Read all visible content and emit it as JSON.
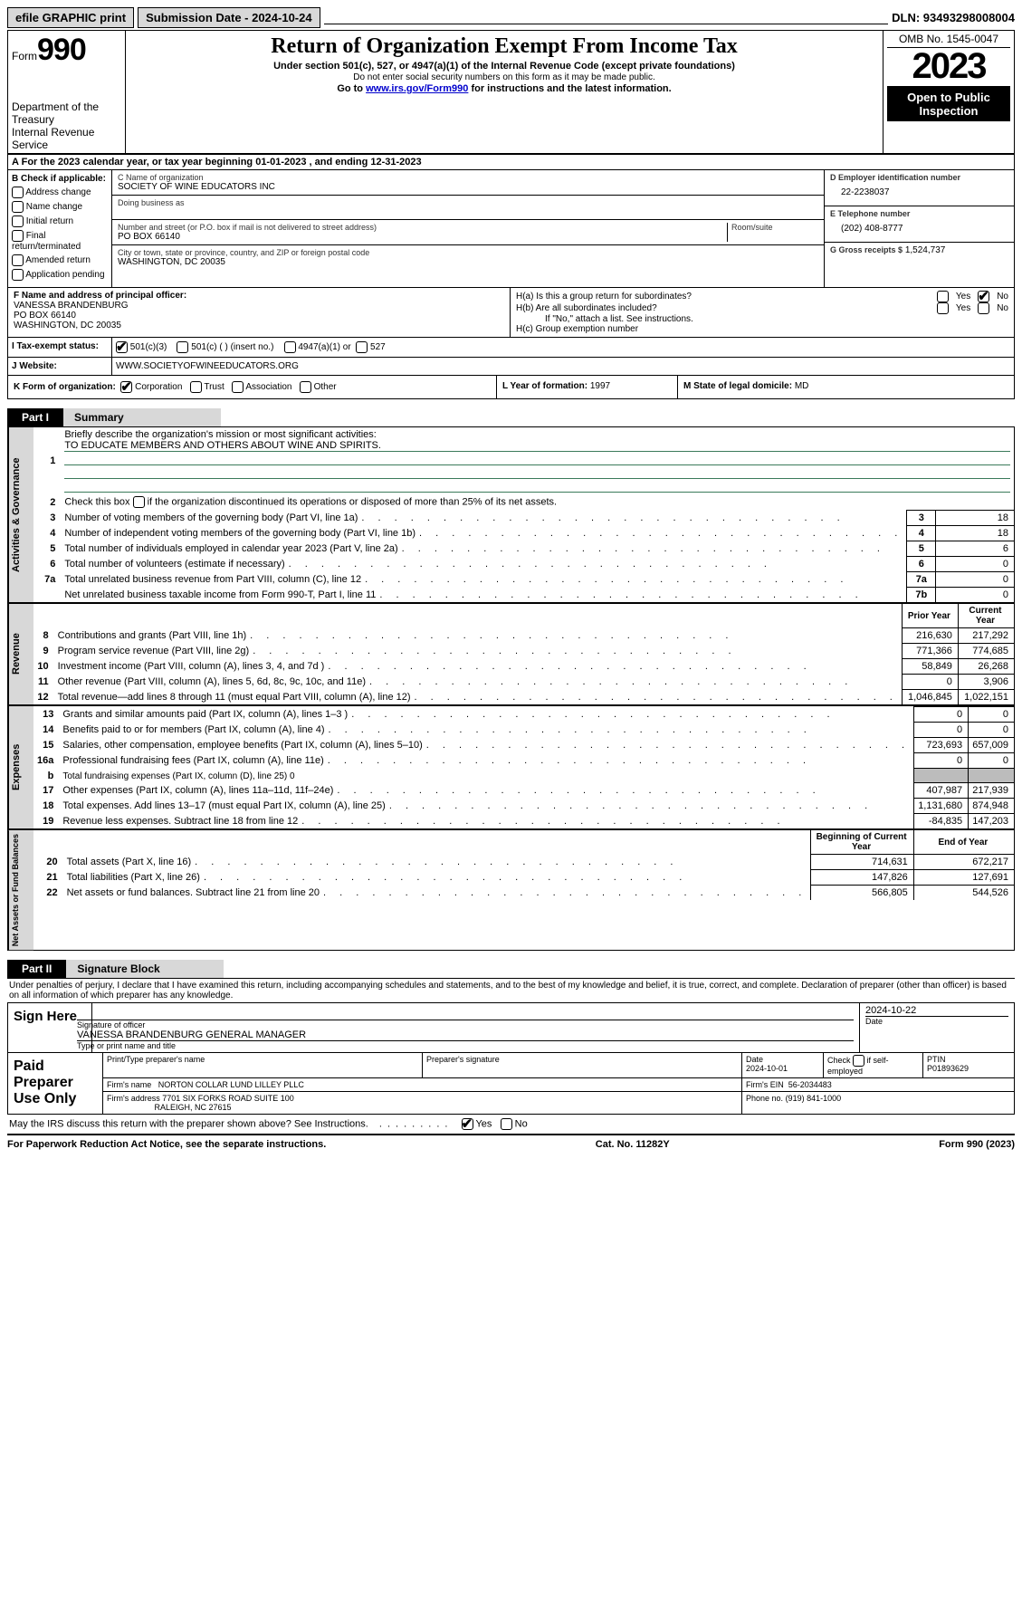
{
  "topbar": {
    "efile_label": "efile GRAPHIC print",
    "submission_label": "Submission Date - 2024-10-24",
    "dln_label": "DLN: 93493298008004"
  },
  "header": {
    "form_prefix": "Form",
    "form_num": "990",
    "dept": "Department of the Treasury",
    "irs": "Internal Revenue Service",
    "title": "Return of Organization Exempt From Income Tax",
    "sub1": "Under section 501(c), 527, or 4947(a)(1) of the Internal Revenue Code (except private foundations)",
    "sub2": "Do not enter social security numbers on this form as it may be made public.",
    "sub3_pre": "Go to ",
    "sub3_link": "www.irs.gov/Form990",
    "sub3_post": " for instructions and the latest information.",
    "omb": "OMB No. 1545-0047",
    "year": "2023",
    "open": "Open to Public Inspection"
  },
  "line_a": "For the 2023 calendar year, or tax year beginning 01-01-2023    , and ending 12-31-2023",
  "box_b": {
    "title": "B Check if applicable:",
    "items": [
      "Address change",
      "Name change",
      "Initial return",
      "Final return/terminated",
      "Amended return",
      "Application pending"
    ]
  },
  "box_c": {
    "name_lbl": "C Name of organization",
    "name": "SOCIETY OF WINE EDUCATORS INC",
    "dba_lbl": "Doing business as",
    "street_lbl": "Number and street (or P.O. box if mail is not delivered to street address)",
    "room_lbl": "Room/suite",
    "street": "PO BOX 66140",
    "city_lbl": "City or town, state or province, country, and ZIP or foreign postal code",
    "city": "WASHINGTON, DC  20035"
  },
  "box_d": {
    "lbl": "D Employer identification number",
    "val": "22-2238037"
  },
  "box_e": {
    "lbl": "E Telephone number",
    "val": "(202) 408-8777"
  },
  "box_g": {
    "lbl": "G Gross receipts $",
    "val": "1,524,737"
  },
  "box_f": {
    "lbl": "F  Name and address of principal officer:",
    "l1": "VANESSA BRANDENBURG",
    "l2": "PO BOX 66140",
    "l3": "WASHINGTON, DC  20035"
  },
  "box_h": {
    "ha": "H(a)  Is this a group return for subordinates?",
    "hb": "H(b)  Are all subordinates included?",
    "hb2": "If \"No,\" attach a list. See instructions.",
    "hc": "H(c)  Group exemption number",
    "yes": "Yes",
    "no": "No"
  },
  "box_i": {
    "lbl": "I    Tax-exempt status:",
    "o1": "501(c)(3)",
    "o2": "501(c) (  ) (insert no.)",
    "o3": "4947(a)(1) or",
    "o4": "527"
  },
  "box_j": {
    "lbl": "J   Website:",
    "val": "WWW.SOCIETYOFWINEEDUCATORS.ORG"
  },
  "box_k": {
    "lbl": "K Form of organization:",
    "o1": "Corporation",
    "o2": "Trust",
    "o3": "Association",
    "o4": "Other"
  },
  "box_l": {
    "lbl": "L Year of formation:",
    "val": "1997"
  },
  "box_m": {
    "lbl": "M State of legal domicile:",
    "val": "MD"
  },
  "part1": {
    "tab": "Part I",
    "title": "Summary"
  },
  "gov": {
    "label": "Activities & Governance",
    "l1": "Briefly describe the organization's mission or most significant activities:",
    "l1v": "TO EDUCATE MEMBERS AND OTHERS ABOUT WINE AND SPIRITS.",
    "l2": "Check this box      if the organization discontinued its operations or disposed of more than 25% of its net assets.",
    "rows": [
      {
        "n": "3",
        "d": "Number of voting members of the governing body (Part VI, line 1a)",
        "b": "3",
        "v": "18"
      },
      {
        "n": "4",
        "d": "Number of independent voting members of the governing body (Part VI, line 1b)",
        "b": "4",
        "v": "18"
      },
      {
        "n": "5",
        "d": "Total number of individuals employed in calendar year 2023 (Part V, line 2a)",
        "b": "5",
        "v": "6"
      },
      {
        "n": "6",
        "d": "Total number of volunteers (estimate if necessary)",
        "b": "6",
        "v": "0"
      },
      {
        "n": "7a",
        "d": "Total unrelated business revenue from Part VIII, column (C), line 12",
        "b": "7a",
        "v": "0"
      },
      {
        "n": "",
        "d": "Net unrelated business taxable income from Form 990-T, Part I, line 11",
        "b": "7b",
        "v": "0"
      }
    ]
  },
  "rev": {
    "label": "Revenue",
    "hdr1": "Prior Year",
    "hdr2": "Current Year",
    "rows": [
      {
        "n": "8",
        "d": "Contributions and grants (Part VIII, line 1h)",
        "p": "216,630",
        "c": "217,292"
      },
      {
        "n": "9",
        "d": "Program service revenue (Part VIII, line 2g)",
        "p": "771,366",
        "c": "774,685"
      },
      {
        "n": "10",
        "d": "Investment income (Part VIII, column (A), lines 3, 4, and 7d )",
        "p": "58,849",
        "c": "26,268"
      },
      {
        "n": "11",
        "d": "Other revenue (Part VIII, column (A), lines 5, 6d, 8c, 9c, 10c, and 11e)",
        "p": "0",
        "c": "3,906"
      },
      {
        "n": "12",
        "d": "Total revenue—add lines 8 through 11 (must equal Part VIII, column (A), line 12)",
        "p": "1,046,845",
        "c": "1,022,151"
      }
    ]
  },
  "exp": {
    "label": "Expenses",
    "rows": [
      {
        "n": "13",
        "d": "Grants and similar amounts paid (Part IX, column (A), lines 1–3 )",
        "p": "0",
        "c": "0"
      },
      {
        "n": "14",
        "d": "Benefits paid to or for members (Part IX, column (A), line 4)",
        "p": "0",
        "c": "0"
      },
      {
        "n": "15",
        "d": "Salaries, other compensation, employee benefits (Part IX, column (A), lines 5–10)",
        "p": "723,693",
        "c": "657,009"
      },
      {
        "n": "16a",
        "d": "Professional fundraising fees (Part IX, column (A), line 11e)",
        "p": "0",
        "c": "0"
      },
      {
        "n": "b",
        "d": "Total fundraising expenses (Part IX, column (D), line 25) 0",
        "p": "",
        "c": "",
        "gray": true
      },
      {
        "n": "17",
        "d": "Other expenses (Part IX, column (A), lines 11a–11d, 11f–24e)",
        "p": "407,987",
        "c": "217,939"
      },
      {
        "n": "18",
        "d": "Total expenses. Add lines 13–17 (must equal Part IX, column (A), line 25)",
        "p": "1,131,680",
        "c": "874,948"
      },
      {
        "n": "19",
        "d": "Revenue less expenses. Subtract line 18 from line 12",
        "p": "-84,835",
        "c": "147,203"
      }
    ]
  },
  "net": {
    "label": "Net Assets or Fund Balances",
    "hdr1": "Beginning of Current Year",
    "hdr2": "End of Year",
    "rows": [
      {
        "n": "20",
        "d": "Total assets (Part X, line 16)",
        "p": "714,631",
        "c": "672,217"
      },
      {
        "n": "21",
        "d": "Total liabilities (Part X, line 26)",
        "p": "147,826",
        "c": "127,691"
      },
      {
        "n": "22",
        "d": "Net assets or fund balances. Subtract line 21 from line 20",
        "p": "566,805",
        "c": "544,526"
      }
    ]
  },
  "part2": {
    "tab": "Part II",
    "title": "Signature Block"
  },
  "penalties": "Under penalties of perjury, I declare that I have examined this return, including accompanying schedules and statements, and to the best of my knowledge and belief, it is true, correct, and complete. Declaration of preparer (other than officer) is based on all information of which preparer has any knowledge.",
  "sign": {
    "here": "Sign Here",
    "sig_lbl": "Signature of officer",
    "date_lbl": "Date",
    "date1": "2024-10-22",
    "name": "VANESSA BRANDENBURG  GENERAL MANAGER",
    "name_lbl": "Type or print name and title"
  },
  "prep": {
    "label": "Paid Preparer Use Only",
    "c1": "Print/Type preparer's name",
    "c2": "Preparer's signature",
    "c3": "Date",
    "c3v": "2024-10-01",
    "c4": "Check        if self-employed",
    "c5": "PTIN",
    "c5v": "P01893629",
    "firm_lbl": "Firm's name",
    "firm": "NORTON COLLAR LUND LILLEY PLLC",
    "ein_lbl": "Firm's EIN",
    "ein": "56-2034483",
    "addr_lbl": "Firm's address",
    "addr1": "7701 SIX FORKS ROAD SUITE 100",
    "addr2": "RALEIGH, NC  27615",
    "phone_lbl": "Phone no.",
    "phone": "(919) 841-1000"
  },
  "discuss": "May the IRS discuss this return with the preparer shown above? See Instructions.",
  "footer": {
    "l": "For Paperwork Reduction Act Notice, see the separate instructions.",
    "m": "Cat. No. 11282Y",
    "r_pre": "Form ",
    "r_bold": "990",
    "r_post": " (2023)"
  }
}
